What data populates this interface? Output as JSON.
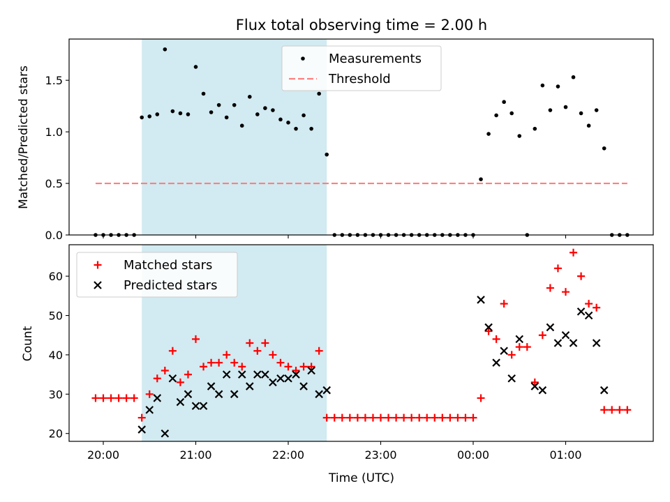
{
  "chart_data": {
    "type": "scatter",
    "title": "Flux total observing time = 2.00 h",
    "xlabel": "Time (UTC)",
    "x_ticks": [
      "20:00",
      "21:00",
      "22:00",
      "23:00",
      "00:00",
      "01:00"
    ],
    "shaded_region": {
      "start": "20:25",
      "end": "22:25",
      "color": "#add8e6"
    },
    "panels": [
      {
        "name": "ratio",
        "ylabel": "Matched/Predicted stars",
        "ylim": [
          0,
          1.9
        ],
        "y_ticks": [
          0.0,
          0.5,
          1.0,
          1.5
        ],
        "legend": {
          "position": "upper center"
        },
        "series": [
          {
            "name": "Measurements",
            "marker": "dot",
            "color": "#000000",
            "points": [
              [
                "19:55",
                0
              ],
              [
                "20:00",
                0
              ],
              [
                "20:05",
                0
              ],
              [
                "20:10",
                0
              ],
              [
                "20:15",
                0
              ],
              [
                "20:20",
                0
              ],
              [
                "20:25",
                1.14
              ],
              [
                "20:30",
                1.15
              ],
              [
                "20:35",
                1.17
              ],
              [
                "20:40",
                1.8
              ],
              [
                "20:45",
                1.2
              ],
              [
                "20:50",
                1.18
              ],
              [
                "20:55",
                1.17
              ],
              [
                "21:00",
                1.63
              ],
              [
                "21:05",
                1.37
              ],
              [
                "21:10",
                1.19
              ],
              [
                "21:15",
                1.26
              ],
              [
                "21:20",
                1.14
              ],
              [
                "21:25",
                1.26
              ],
              [
                "21:30",
                1.06
              ],
              [
                "21:35",
                1.34
              ],
              [
                "21:40",
                1.17
              ],
              [
                "21:45",
                1.23
              ],
              [
                "21:50",
                1.21
              ],
              [
                "21:55",
                1.12
              ],
              [
                "22:00",
                1.09
              ],
              [
                "22:05",
                1.03
              ],
              [
                "22:10",
                1.16
              ],
              [
                "22:15",
                1.03
              ],
              [
                "22:20",
                1.37
              ],
              [
                "22:25",
                0.78
              ],
              [
                "22:30",
                0
              ],
              [
                "22:35",
                0
              ],
              [
                "22:40",
                0
              ],
              [
                "22:45",
                0
              ],
              [
                "22:50",
                0
              ],
              [
                "22:55",
                0
              ],
              [
                "23:00",
                0
              ],
              [
                "23:05",
                0
              ],
              [
                "23:10",
                0
              ],
              [
                "23:15",
                0
              ],
              [
                "23:20",
                0
              ],
              [
                "23:25",
                0
              ],
              [
                "23:30",
                0
              ],
              [
                "23:35",
                0
              ],
              [
                "23:40",
                0
              ],
              [
                "23:45",
                0
              ],
              [
                "23:50",
                0
              ],
              [
                "23:55",
                0
              ],
              [
                "00:00",
                0
              ],
              [
                "00:05",
                0.54
              ],
              [
                "00:10",
                0.98
              ],
              [
                "00:15",
                1.16
              ],
              [
                "00:20",
                1.29
              ],
              [
                "00:25",
                1.18
              ],
              [
                "00:30",
                0.96
              ],
              [
                "00:35",
                0
              ],
              [
                "00:40",
                1.03
              ],
              [
                "00:45",
                1.45
              ],
              [
                "00:50",
                1.21
              ],
              [
                "00:55",
                1.44
              ],
              [
                "01:00",
                1.24
              ],
              [
                "01:05",
                1.53
              ],
              [
                "01:10",
                1.18
              ],
              [
                "01:15",
                1.06
              ],
              [
                "01:20",
                1.21
              ],
              [
                "01:25",
                0.84
              ],
              [
                "01:30",
                0
              ],
              [
                "01:35",
                0
              ],
              [
                "01:40",
                0
              ]
            ]
          },
          {
            "name": "Threshold",
            "type": "line",
            "style": "dashed",
            "color": "#ff7f7f",
            "points": [
              [
                "19:55",
                0.5
              ],
              [
                "01:40",
                0.5
              ]
            ]
          }
        ]
      },
      {
        "name": "counts",
        "ylabel": "Count",
        "ylim": [
          18,
          68
        ],
        "y_ticks": [
          20,
          30,
          40,
          50,
          60
        ],
        "legend": {
          "position": "upper left"
        },
        "series": [
          {
            "name": "Matched stars",
            "marker": "plus",
            "color": "#ff0000",
            "points": [
              [
                "19:55",
                29
              ],
              [
                "20:00",
                29
              ],
              [
                "20:05",
                29
              ],
              [
                "20:10",
                29
              ],
              [
                "20:15",
                29
              ],
              [
                "20:20",
                29
              ],
              [
                "20:25",
                24
              ],
              [
                "20:30",
                30
              ],
              [
                "20:35",
                34
              ],
              [
                "20:40",
                36
              ],
              [
                "20:45",
                41
              ],
              [
                "20:50",
                33
              ],
              [
                "20:55",
                35
              ],
              [
                "21:00",
                44
              ],
              [
                "21:05",
                37
              ],
              [
                "21:10",
                38
              ],
              [
                "21:15",
                38
              ],
              [
                "21:20",
                40
              ],
              [
                "21:25",
                38
              ],
              [
                "21:30",
                37
              ],
              [
                "21:35",
                43
              ],
              [
                "21:40",
                41
              ],
              [
                "21:45",
                43
              ],
              [
                "21:50",
                40
              ],
              [
                "21:55",
                38
              ],
              [
                "22:00",
                37
              ],
              [
                "22:05",
                36
              ],
              [
                "22:10",
                37
              ],
              [
                "22:15",
                37
              ],
              [
                "22:20",
                41
              ],
              [
                "22:25",
                24
              ],
              [
                "22:30",
                24
              ],
              [
                "22:35",
                24
              ],
              [
                "22:40",
                24
              ],
              [
                "22:45",
                24
              ],
              [
                "22:50",
                24
              ],
              [
                "22:55",
                24
              ],
              [
                "23:00",
                24
              ],
              [
                "23:05",
                24
              ],
              [
                "23:10",
                24
              ],
              [
                "23:15",
                24
              ],
              [
                "23:20",
                24
              ],
              [
                "23:25",
                24
              ],
              [
                "23:30",
                24
              ],
              [
                "23:35",
                24
              ],
              [
                "23:40",
                24
              ],
              [
                "23:45",
                24
              ],
              [
                "23:50",
                24
              ],
              [
                "23:55",
                24
              ],
              [
                "00:00",
                24
              ],
              [
                "00:05",
                29
              ],
              [
                "00:10",
                46
              ],
              [
                "00:15",
                44
              ],
              [
                "00:20",
                53
              ],
              [
                "00:25",
                40
              ],
              [
                "00:30",
                42
              ],
              [
                "00:35",
                42
              ],
              [
                "00:40",
                33
              ],
              [
                "00:45",
                45
              ],
              [
                "00:50",
                57
              ],
              [
                "00:55",
                62
              ],
              [
                "01:00",
                56
              ],
              [
                "01:05",
                66
              ],
              [
                "01:10",
                60
              ],
              [
                "01:15",
                53
              ],
              [
                "01:20",
                52
              ],
              [
                "01:25",
                26
              ],
              [
                "01:30",
                26
              ],
              [
                "01:35",
                26
              ],
              [
                "01:40",
                26
              ]
            ]
          },
          {
            "name": "Predicted stars",
            "marker": "x",
            "color": "#000000",
            "points": [
              [
                "20:25",
                21
              ],
              [
                "20:30",
                26
              ],
              [
                "20:35",
                29
              ],
              [
                "20:40",
                20
              ],
              [
                "20:45",
                34
              ],
              [
                "20:50",
                28
              ],
              [
                "20:55",
                30
              ],
              [
                "21:00",
                27
              ],
              [
                "21:05",
                27
              ],
              [
                "21:10",
                32
              ],
              [
                "21:15",
                30
              ],
              [
                "21:20",
                35
              ],
              [
                "21:25",
                30
              ],
              [
                "21:30",
                35
              ],
              [
                "21:35",
                32
              ],
              [
                "21:40",
                35
              ],
              [
                "21:45",
                35
              ],
              [
                "21:50",
                33
              ],
              [
                "21:55",
                34
              ],
              [
                "22:00",
                34
              ],
              [
                "22:05",
                35
              ],
              [
                "22:10",
                32
              ],
              [
                "22:15",
                36
              ],
              [
                "22:20",
                30
              ],
              [
                "22:25",
                31
              ],
              [
                "00:05",
                54
              ],
              [
                "00:10",
                47
              ],
              [
                "00:15",
                38
              ],
              [
                "00:20",
                41
              ],
              [
                "00:25",
                34
              ],
              [
                "00:30",
                44
              ],
              [
                "00:40",
                32
              ],
              [
                "00:45",
                31
              ],
              [
                "00:50",
                47
              ],
              [
                "00:55",
                43
              ],
              [
                "01:00",
                45
              ],
              [
                "01:05",
                43
              ],
              [
                "01:10",
                51
              ],
              [
                "01:15",
                50
              ],
              [
                "01:20",
                43
              ],
              [
                "01:25",
                31
              ]
            ]
          }
        ]
      }
    ]
  }
}
